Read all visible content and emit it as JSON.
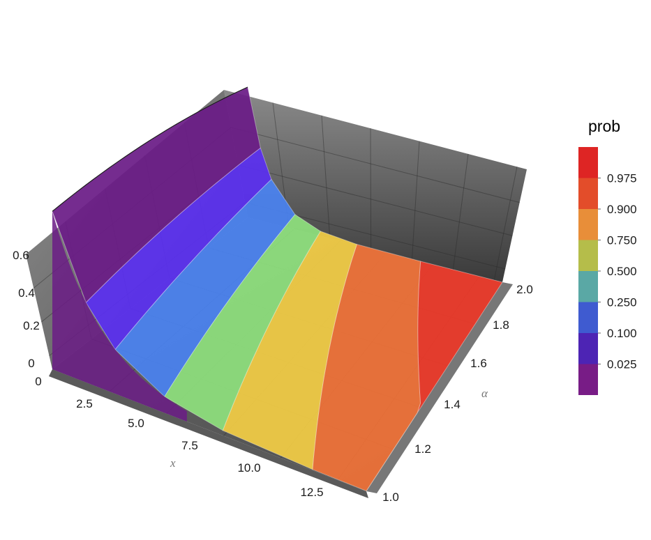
{
  "chart_data": {
    "type": "surface3d",
    "x_axis": {
      "label": "x",
      "range": [
        0,
        14
      ],
      "ticks": [
        "0",
        "2.5",
        "5.0",
        "7.5",
        "10.0",
        "12.5"
      ]
    },
    "alpha_axis": {
      "label": "α",
      "range": [
        1.0,
        2.0
      ],
      "ticks": [
        "1.0",
        "1.2",
        "1.4",
        "1.6",
        "1.8",
        "2.0"
      ]
    },
    "z_axis": {
      "range": [
        0,
        0.6
      ],
      "ticks": [
        "0",
        "0.2",
        "0.4",
        "0.6"
      ]
    },
    "ridge_peak": {
      "alpha": 2.0,
      "x": 0,
      "z": 0.6
    },
    "front_edge_peak": {
      "alpha": 1.0,
      "x": 0,
      "z": 0.4
    },
    "contour_boundaries": [
      {
        "level": "0.100",
        "x_at_alpha_1": 1.5,
        "x_at_alpha_2": 0.7
      },
      {
        "level": "0.250",
        "x_at_alpha_1": 2.8,
        "x_at_alpha_2": 1.3
      },
      {
        "level": "0.500",
        "x_at_alpha_1": 5.0,
        "x_at_alpha_2": 2.6
      },
      {
        "level": "0.750",
        "x_at_alpha_1": 7.6,
        "x_at_alpha_2": 4.0
      },
      {
        "level": "0.900",
        "x_at_alpha_1": 11.6,
        "x_at_alpha_2": 6.0
      },
      {
        "level": "0.975",
        "x_at_alpha_1": 17.0,
        "x_at_alpha_2": 9.5
      }
    ],
    "legend": {
      "title": "prob",
      "placement": "right",
      "bins": [
        {
          "label": "",
          "color": "#de2524"
        },
        {
          "label": "0.975",
          "color": "#e34d2a"
        },
        {
          "label": "0.900",
          "color": "#e88e39"
        },
        {
          "label": "0.750",
          "color": "#b5bd4a"
        },
        {
          "label": "0.500",
          "color": "#5aa8a5"
        },
        {
          "label": "0.250",
          "color": "#3f5bd0"
        },
        {
          "label": "0.100",
          "color": "#4d24b4"
        },
        {
          "label": "0.025",
          "color": "#781c86"
        }
      ]
    },
    "surface_colors": [
      "#6b1c86",
      "#5a2ff0",
      "#4a82f0",
      "#8ee07d",
      "#f2cc45",
      "#f07238",
      "#ee3a2a"
    ]
  }
}
